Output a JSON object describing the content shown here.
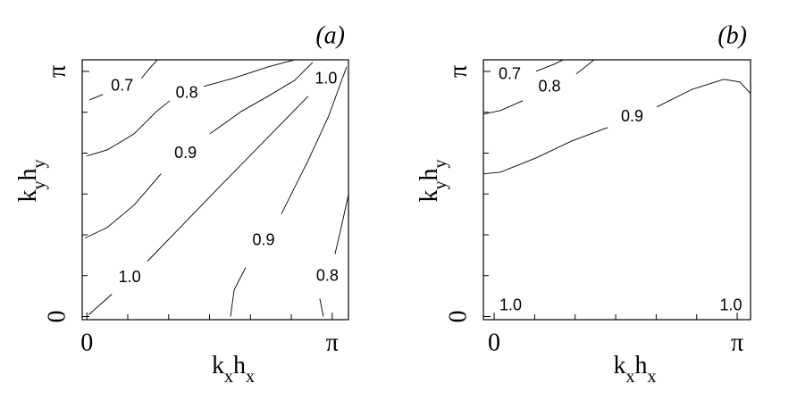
{
  "chart_data": [
    {
      "type": "contour",
      "title": "(a)",
      "xlabel": "kxhx",
      "ylabel": "kyhy",
      "xlim": [
        -0.06,
        3.35
      ],
      "ylim": [
        -0.04,
        3.29
      ],
      "xticks": [
        0,
        {
          "value": 3.1416,
          "label": "π"
        }
      ],
      "yticks": [
        0,
        {
          "value": 3.1416,
          "label": "π"
        }
      ],
      "xminorticks": [
        0.5236,
        1.0472,
        1.5708,
        2.0944,
        2.618
      ],
      "yminorticks": [
        0.5236,
        1.0472,
        1.5708,
        2.0944,
        2.618
      ],
      "contours": [
        {
          "level": 0.7,
          "x": [
            0.034,
            0.206,
            null,
            0.697,
            0.811,
            0.903
          ],
          "y": [
            2.777,
            2.846,
            null,
            3.051,
            3.189,
            3.291
          ]
        },
        {
          "level": 0.8,
          "x": [
            0,
            0.263,
            0.606,
            0.891,
            1.063,
            null,
            1.497,
            1.863,
            2.32,
            2.663
          ],
          "y": [
            2.057,
            2.137,
            2.343,
            2.629,
            2.766,
            null,
            2.949,
            3.051,
            3.2,
            3.291
          ]
        },
        {
          "level": 0.9,
          "x": [
            -0.023,
            0.263,
            0.606,
            0.949,
            null,
            1.577,
            1.977,
            2.32,
            2.663,
            2.891
          ],
          "y": [
            1.006,
            1.143,
            1.429,
            1.829,
            null,
            2.343,
            2.629,
            2.823,
            3.029,
            3.257
          ]
        },
        {
          "level": 1.0,
          "level_label": "1.0",
          "x": [
            0.023,
            0.32,
            null,
            0.777,
            1.749
          ],
          "y": [
            0.023,
            0.286,
            null,
            0.709,
            1.714
          ]
        },
        {
          "level": 1.0,
          "level_label": "1.0",
          "x": [
            1.749,
            2.834,
            null,
            3.291
          ],
          "y": [
            1.714,
            2.823,
            null,
            3.257
          ]
        },
        {
          "level": 0.9,
          "x": [
            1.84,
            1.886,
            2.034,
            null,
            2.491,
            2.834,
            3.097,
            3.326
          ],
          "y": [
            0,
            0.343,
            0.629,
            null,
            1.314,
            2.0,
            2.571,
            3.2
          ]
        },
        {
          "level": 0.8,
          "x": [
            3.029,
            2.983,
            null,
            3.177,
            3.257,
            3.371
          ],
          "y": [
            0,
            0.229,
            null,
            0.8,
            1.143,
            1.657
          ]
        }
      ]
    },
    {
      "type": "contour",
      "title": "(b)",
      "xlabel": "kxhx",
      "ylabel": "kyhy",
      "xlim": [
        -0.139,
        3.314
      ],
      "ylim": [
        -0.04,
        3.29
      ],
      "xticks": [
        0,
        {
          "value": 3.1416,
          "label": "π"
        }
      ],
      "yticks": [
        0,
        {
          "value": 3.1416,
          "label": "π"
        }
      ],
      "xminorticks": [
        0.5236,
        1.0472,
        1.5708,
        2.0944,
        2.618
      ],
      "yminorticks": [
        0.5236,
        1.0472,
        1.5708,
        2.0944,
        2.618
      ],
      "contours": [
        {
          "level": 0.7,
          "x": [
            -0.139,
            null,
            0.543,
            0.774,
            0.947
          ],
          "y": [
            3.051,
            null,
            3.143,
            3.234,
            3.314
          ]
        },
        {
          "level": 0.8,
          "x": [
            -0.139,
            0.081,
            0.37,
            null,
            1.062,
            1.293
          ],
          "y": [
            2.594,
            2.64,
            2.766,
            null,
            3.109,
            3.291
          ]
        },
        {
          "level": 0.9,
          "x": [
            -0.139,
            0.081,
            0.543,
            1.005,
            1.467,
            null,
            2.102,
            2.564,
            2.968,
            3.176,
            3.314
          ],
          "y": [
            1.829,
            1.851,
            2.034,
            2.251,
            2.423,
            null,
            2.686,
            2.914,
            3.04,
            3.006,
            2.857
          ]
        },
        {
          "level": 1.0,
          "level_label": "1.0",
          "x": [
            0,
            null,
            0.427
          ],
          "y": [
            0.08,
            null,
            0.194
          ]
        },
        {
          "level": 1.0,
          "level_label": "1.0",
          "x": [
            2.852,
            null,
            3.268
          ],
          "y": [
            0.08,
            null,
            0.194
          ]
        }
      ]
    }
  ]
}
